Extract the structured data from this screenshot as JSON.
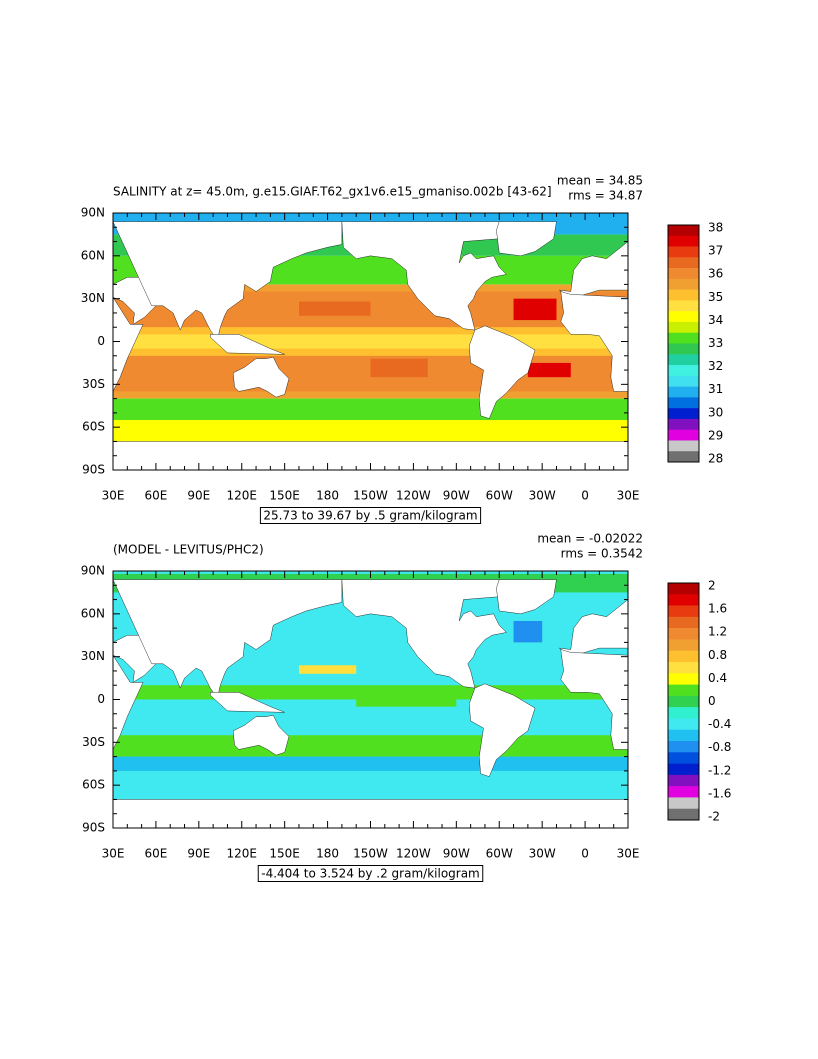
{
  "panels": [
    {
      "mean": "mean = 34.85",
      "rms": "rms = 34.87",
      "title": "SALINITY at z=  45.0m, g.e15.GIAF.T62_gx1v6.e15_gmaniso.002b [43-62]",
      "y_labels": [
        "90N",
        "60N",
        "30N",
        "0",
        "30S",
        "60S",
        "90S"
      ],
      "x_labels": [
        "30E",
        "60E",
        "90E",
        "120E",
        "150E",
        "180",
        "150W",
        "120W",
        "90W",
        "60W",
        "30W",
        "0",
        "30E"
      ],
      "colorbar": {
        "labels": [
          38,
          37,
          36,
          35,
          34,
          33,
          32,
          31,
          30,
          29,
          28
        ],
        "colors": [
          "#b40000",
          "#e00000",
          "#e83c10",
          "#e86a20",
          "#f08a30",
          "#f0a030",
          "#ffc030",
          "#ffe040",
          "#ffff00",
          "#c8f000",
          "#50e020",
          "#30c850",
          "#20d0a0",
          "#40f0e0",
          "#40e0f0",
          "#20b0f0",
          "#0070e0",
          "#0020d0",
          "#8010c0",
          "#e000e0",
          "#c8c8c8",
          "#707070"
        ]
      },
      "range": "25.73 to 39.67 by .5 gram/kilogram"
    },
    {
      "mean": "mean = -0.02022",
      "rms": "rms = 0.3542",
      "title": "(MODEL - LEVITUS/PHC2)",
      "y_labels": [
        "90N",
        "60N",
        "30N",
        "0",
        "30S",
        "60S",
        "90S"
      ],
      "x_labels": [
        "30E",
        "60E",
        "90E",
        "120E",
        "150E",
        "180",
        "150W",
        "120W",
        "90W",
        "60W",
        "30W",
        "0",
        "30E"
      ],
      "colorbar": {
        "labels": [
          2,
          1.6,
          1.2,
          0.8,
          0.4,
          0,
          -0.4,
          -0.8,
          -1.2,
          -1.6,
          -2
        ],
        "colors": [
          "#b40000",
          "#e00000",
          "#e83c10",
          "#e86a20",
          "#f08a30",
          "#f0a030",
          "#ffc030",
          "#ffe040",
          "#ffff00",
          "#50e020",
          "#30d050",
          "#30f0d0",
          "#40e8f0",
          "#20c0f0",
          "#2090f0",
          "#0050e0",
          "#0020d0",
          "#8010c0",
          "#e000e0",
          "#c8c8c8",
          "#707070"
        ]
      },
      "range": "-4.404 to 3.524 by .2 gram/kilogram"
    }
  ]
}
